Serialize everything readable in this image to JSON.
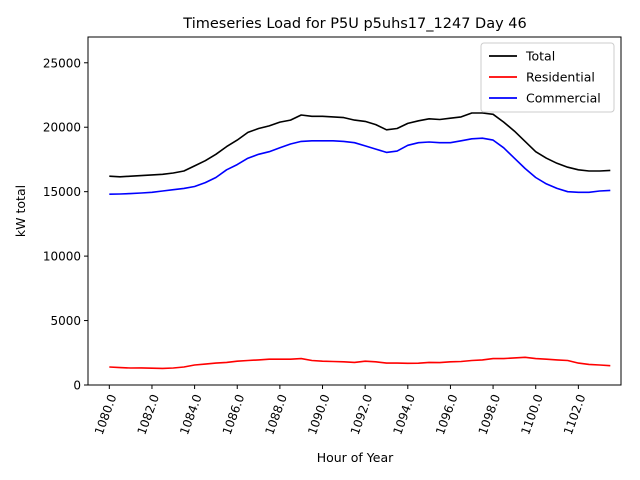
{
  "chart_data": {
    "type": "line",
    "title": "Timeseries Load for P5U p5uhs17_1247  Day 46",
    "xlabel": "Hour of Year",
    "ylabel": "kW total",
    "xlim": [
      1079.0,
      1104.0
    ],
    "ylim": [
      0,
      27000
    ],
    "x_ticks": [
      1080,
      1082,
      1084,
      1086,
      1088,
      1090,
      1092,
      1094,
      1096,
      1098,
      1100,
      1102
    ],
    "x_tick_labels": [
      "1080.0",
      "1082.0",
      "1084.0",
      "1086.0",
      "1088.0",
      "1090.0",
      "1092.0",
      "1094.0",
      "1096.0",
      "1098.0",
      "1100.0",
      "1102.0"
    ],
    "y_ticks": [
      0,
      5000,
      10000,
      15000,
      20000,
      25000
    ],
    "y_tick_labels": [
      "0",
      "5000",
      "10000",
      "15000",
      "20000",
      "25000"
    ],
    "grid": false,
    "legend_position": "top-right",
    "x": [
      1080.0,
      1080.5,
      1081.0,
      1081.5,
      1082.0,
      1082.5,
      1083.0,
      1083.5,
      1084.0,
      1084.5,
      1085.0,
      1085.5,
      1086.0,
      1086.5,
      1087.0,
      1087.5,
      1088.0,
      1088.5,
      1089.0,
      1089.5,
      1090.0,
      1090.5,
      1091.0,
      1091.5,
      1092.0,
      1092.5,
      1093.0,
      1093.5,
      1094.0,
      1094.5,
      1095.0,
      1095.5,
      1096.0,
      1096.5,
      1097.0,
      1097.5,
      1098.0,
      1098.5,
      1099.0,
      1099.5,
      1100.0,
      1100.5,
      1101.0,
      1101.5,
      1102.0,
      1102.5,
      1103.0,
      1103.5
    ],
    "series": [
      {
        "name": "Total",
        "color": "#000000",
        "values": [
          16200,
          16150,
          16200,
          16250,
          16300,
          16350,
          16450,
          16600,
          17000,
          17400,
          17900,
          18500,
          19000,
          19600,
          19900,
          20100,
          20400,
          20550,
          20950,
          20850,
          20850,
          20800,
          20750,
          20550,
          20450,
          20200,
          19800,
          19900,
          20300,
          20500,
          20650,
          20600,
          20700,
          20800,
          21100,
          21100,
          21000,
          20400,
          19700,
          18900,
          18100,
          17600,
          17200,
          16900,
          16700,
          16600,
          16600,
          16650
        ]
      },
      {
        "name": "Residential",
        "color": "#ff0000",
        "values": [
          1400,
          1350,
          1320,
          1330,
          1300,
          1290,
          1320,
          1400,
          1550,
          1620,
          1700,
          1750,
          1850,
          1900,
          1950,
          2000,
          2000,
          2000,
          2050,
          1900,
          1850,
          1820,
          1800,
          1750,
          1850,
          1800,
          1700,
          1700,
          1680,
          1690,
          1750,
          1740,
          1800,
          1820,
          1900,
          1950,
          2050,
          2050,
          2100,
          2150,
          2050,
          2000,
          1950,
          1900,
          1700,
          1600,
          1550,
          1500
        ]
      },
      {
        "name": "Commercial",
        "color": "#0000ff",
        "values": [
          14800,
          14820,
          14850,
          14900,
          14950,
          15050,
          15150,
          15250,
          15400,
          15700,
          16100,
          16700,
          17100,
          17600,
          17900,
          18100,
          18400,
          18700,
          18900,
          18950,
          18950,
          18950,
          18900,
          18800,
          18550,
          18300,
          18050,
          18150,
          18600,
          18800,
          18850,
          18800,
          18800,
          18950,
          19100,
          19150,
          19000,
          18400,
          17600,
          16800,
          16100,
          15600,
          15250,
          15000,
          14950,
          14950,
          15050,
          15100
        ]
      }
    ]
  }
}
